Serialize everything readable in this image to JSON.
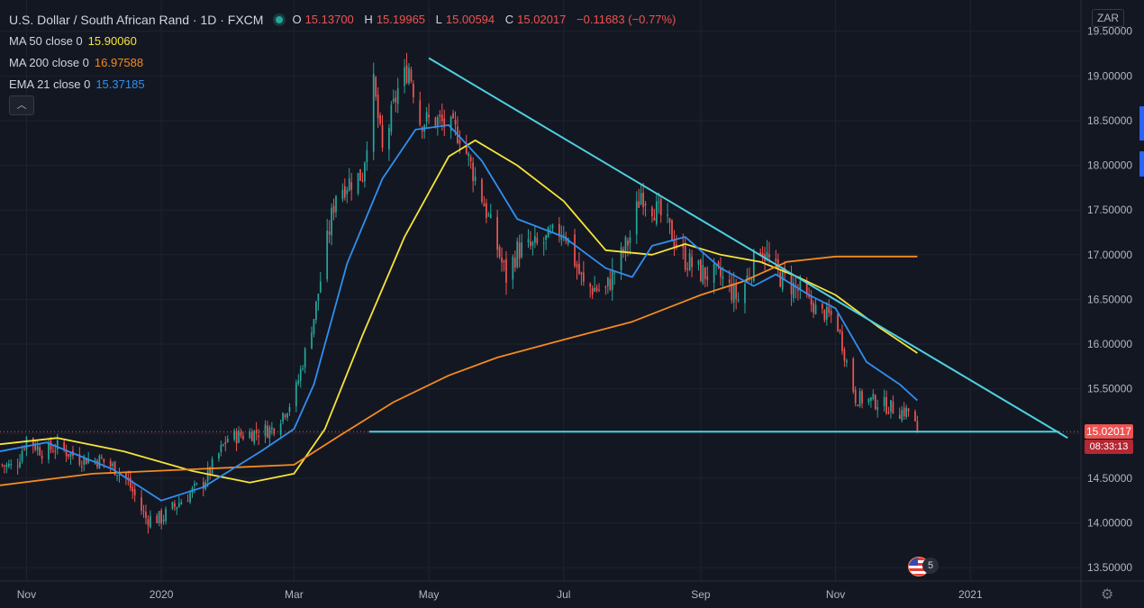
{
  "header": {
    "title": "U.S. Dollar / South African Rand · 1D · FXCM",
    "ohlc": {
      "o_label": "O",
      "o": "15.13700",
      "h_label": "H",
      "h": "15.19965",
      "l_label": "L",
      "l": "15.00594",
      "c_label": "C",
      "c": "15.02017",
      "change": "−0.11683 (−0.77%)"
    }
  },
  "indicators": [
    {
      "name": "MA 50 close 0",
      "value": "15.90060",
      "color": "#f7e338"
    },
    {
      "name": "MA 200 close 0",
      "value": "16.97588",
      "color": "#f58a1f"
    },
    {
      "name": "EMA 21 close 0",
      "value": "15.37185",
      "color": "#2f8ff0"
    }
  ],
  "ui": {
    "collapse_icon": "chevron-up-icon",
    "collapse_glyph": "︿",
    "currency": "ZAR",
    "last_price": "15.02017",
    "countdown": "08:33:13",
    "events_count": "5",
    "settings_icon": "gear-icon",
    "settings_glyph": "⚙"
  },
  "colors": {
    "background": "#131722",
    "up": "#26a69a",
    "down": "#ef5350",
    "trendline": "#4dd0e1",
    "grid": "#1f2330"
  },
  "chart_data": {
    "type": "candlestick",
    "y_ticks": [
      "19.50000",
      "19.00000",
      "18.50000",
      "18.00000",
      "17.50000",
      "17.00000",
      "16.50000",
      "16.00000",
      "15.50000",
      "15.00000",
      "14.50000",
      "14.00000",
      "13.50000"
    ],
    "ylim": [
      13.35,
      19.85
    ],
    "x_ticks": [
      "Nov",
      "2020",
      "Mar",
      "May",
      "Jul",
      "Sep",
      "Nov",
      "2021"
    ],
    "x_tick_dates": [
      "2019-11-01",
      "2020-01-01",
      "2020-03-01",
      "2020-05-01",
      "2020-07-01",
      "2020-09-01",
      "2020-11-01",
      "2021-01-01"
    ],
    "xlim": [
      "2019-10-20",
      "2021-02-20"
    ],
    "grid": true,
    "close_anchors": [
      [
        "2019-10-20",
        14.65
      ],
      [
        "2019-10-27",
        14.62
      ],
      [
        "2019-11-01",
        14.95
      ],
      [
        "2019-11-08",
        14.8
      ],
      [
        "2019-11-15",
        14.85
      ],
      [
        "2019-11-25",
        14.72
      ],
      [
        "2019-12-05",
        14.7
      ],
      [
        "2019-12-15",
        14.55
      ],
      [
        "2019-12-25",
        14.05
      ],
      [
        "2020-01-01",
        14.05
      ],
      [
        "2020-01-10",
        14.25
      ],
      [
        "2020-01-20",
        14.45
      ],
      [
        "2020-01-31",
        14.95
      ],
      [
        "2020-02-10",
        15.0
      ],
      [
        "2020-02-20",
        15.05
      ],
      [
        "2020-03-01",
        15.4
      ],
      [
        "2020-03-10",
        16.3
      ],
      [
        "2020-03-20",
        17.7
      ],
      [
        "2020-03-25",
        17.8
      ],
      [
        "2020-04-01",
        17.9
      ],
      [
        "2020-04-06",
        18.9
      ],
      [
        "2020-04-10",
        18.15
      ],
      [
        "2020-04-17",
        18.85
      ],
      [
        "2020-04-22",
        19.1
      ],
      [
        "2020-04-27",
        18.5
      ],
      [
        "2020-05-05",
        18.5
      ],
      [
        "2020-05-15",
        18.35
      ],
      [
        "2020-05-25",
        17.65
      ],
      [
        "2020-06-05",
        16.75
      ],
      [
        "2020-06-10",
        17.05
      ],
      [
        "2020-06-20",
        17.1
      ],
      [
        "2020-07-01",
        17.3
      ],
      [
        "2020-07-10",
        16.65
      ],
      [
        "2020-07-20",
        16.6
      ],
      [
        "2020-07-31",
        17.2
      ],
      [
        "2020-08-05",
        17.7
      ],
      [
        "2020-08-15",
        17.4
      ],
      [
        "2020-08-25",
        16.95
      ],
      [
        "2020-09-01",
        16.8
      ],
      [
        "2020-09-10",
        16.75
      ],
      [
        "2020-09-18",
        16.5
      ],
      [
        "2020-09-23",
        16.8
      ],
      [
        "2020-09-28",
        17.1
      ],
      [
        "2020-10-05",
        16.8
      ],
      [
        "2020-10-15",
        16.6
      ],
      [
        "2020-10-25",
        16.35
      ],
      [
        "2020-11-01",
        16.3
      ],
      [
        "2020-11-05",
        15.9
      ],
      [
        "2020-11-10",
        15.4
      ],
      [
        "2020-11-20",
        15.35
      ],
      [
        "2020-11-30",
        15.25
      ],
      [
        "2020-12-05",
        15.25
      ],
      [
        "2020-12-08",
        15.02
      ]
    ],
    "series": [
      {
        "name": "MA 50 close 0",
        "color": "#f7e338",
        "points": [
          [
            "2019-10-20",
            14.88
          ],
          [
            "2019-11-15",
            14.95
          ],
          [
            "2019-12-15",
            14.8
          ],
          [
            "2020-01-15",
            14.58
          ],
          [
            "2020-02-10",
            14.45
          ],
          [
            "2020-03-01",
            14.55
          ],
          [
            "2020-03-15",
            15.05
          ],
          [
            "2020-04-01",
            16.1
          ],
          [
            "2020-04-20",
            17.2
          ],
          [
            "2020-05-10",
            18.1
          ],
          [
            "2020-05-22",
            18.28
          ],
          [
            "2020-06-10",
            18.0
          ],
          [
            "2020-07-01",
            17.6
          ],
          [
            "2020-07-20",
            17.05
          ],
          [
            "2020-08-10",
            17.0
          ],
          [
            "2020-08-25",
            17.12
          ],
          [
            "2020-09-10",
            17.0
          ],
          [
            "2020-09-28",
            16.92
          ],
          [
            "2020-10-15",
            16.75
          ],
          [
            "2020-11-01",
            16.55
          ],
          [
            "2020-11-20",
            16.2
          ],
          [
            "2020-12-08",
            15.9
          ]
        ]
      },
      {
        "name": "MA 200 close 0",
        "color": "#f58a1f",
        "points": [
          [
            "2019-10-20",
            14.42
          ],
          [
            "2019-12-01",
            14.55
          ],
          [
            "2020-01-15",
            14.6
          ],
          [
            "2020-03-01",
            14.65
          ],
          [
            "2020-03-20",
            14.95
          ],
          [
            "2020-04-15",
            15.35
          ],
          [
            "2020-05-10",
            15.65
          ],
          [
            "2020-06-01",
            15.85
          ],
          [
            "2020-07-01",
            16.05
          ],
          [
            "2020-08-01",
            16.25
          ],
          [
            "2020-09-01",
            16.55
          ],
          [
            "2020-09-20",
            16.7
          ],
          [
            "2020-10-10",
            16.92
          ],
          [
            "2020-11-01",
            16.98
          ],
          [
            "2020-12-08",
            16.98
          ]
        ]
      },
      {
        "name": "EMA 21 close 0",
        "color": "#2f8ff0",
        "points": [
          [
            "2019-10-20",
            14.8
          ],
          [
            "2019-11-10",
            14.9
          ],
          [
            "2019-12-10",
            14.6
          ],
          [
            "2020-01-01",
            14.25
          ],
          [
            "2020-01-20",
            14.4
          ],
          [
            "2020-02-15",
            14.8
          ],
          [
            "2020-03-01",
            15.05
          ],
          [
            "2020-03-10",
            15.55
          ],
          [
            "2020-03-25",
            16.9
          ],
          [
            "2020-04-10",
            17.85
          ],
          [
            "2020-04-25",
            18.4
          ],
          [
            "2020-05-10",
            18.45
          ],
          [
            "2020-05-25",
            18.05
          ],
          [
            "2020-06-10",
            17.4
          ],
          [
            "2020-07-01",
            17.2
          ],
          [
            "2020-07-20",
            16.85
          ],
          [
            "2020-08-01",
            16.75
          ],
          [
            "2020-08-10",
            17.1
          ],
          [
            "2020-08-25",
            17.2
          ],
          [
            "2020-09-10",
            16.85
          ],
          [
            "2020-09-25",
            16.65
          ],
          [
            "2020-10-05",
            16.78
          ],
          [
            "2020-10-20",
            16.55
          ],
          [
            "2020-11-01",
            16.4
          ],
          [
            "2020-11-15",
            15.8
          ],
          [
            "2020-11-30",
            15.55
          ],
          [
            "2020-12-08",
            15.37
          ]
        ]
      }
    ],
    "drawings": [
      {
        "name": "descending-trendline",
        "color": "#4dd0e1",
        "from": [
          "2020-05-01",
          19.2
        ],
        "to": [
          "2021-02-14",
          14.95
        ]
      },
      {
        "name": "horizontal-support-line",
        "color": "#4dd0e1",
        "from": [
          "2020-04-04",
          15.02
        ],
        "to": [
          "2021-02-10",
          15.02
        ]
      }
    ]
  }
}
